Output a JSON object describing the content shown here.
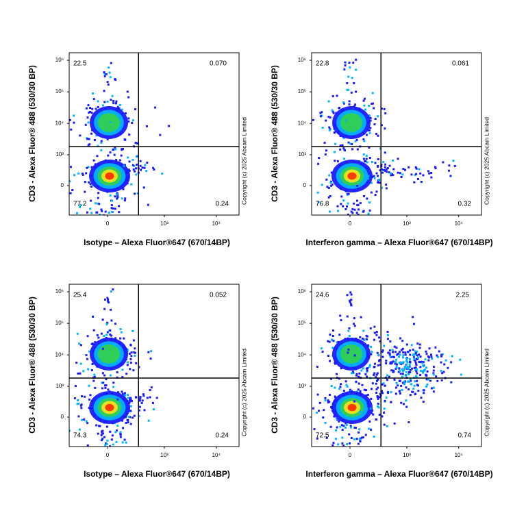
{
  "chart_data": [
    {
      "type": "scatter",
      "x_label": "Isotype – Alexa Fluor®647 (670/14BP)",
      "y_label": "CD3 - Alexa Fluor® 488 (530/30 BP)",
      "annotation": "Copyright (c) 2025 Abcam Limited",
      "xscale": "biexponential",
      "yscale": "biexponential",
      "xlim": [
        -430,
        27400
      ],
      "ylim": [
        -900,
        1740000
      ],
      "xticks": [
        0,
        {
          "value": 1000,
          "label": "10³"
        },
        {
          "value": 10000,
          "label": "10⁴"
        }
      ],
      "yticks": [
        0,
        {
          "value": 1000,
          "label": "10³"
        },
        {
          "value": 10000,
          "label": "10⁴"
        },
        {
          "value": 100000,
          "label": "10⁵"
        },
        {
          "value": 1000000,
          "label": "10⁶"
        }
      ],
      "gate": {
        "x": 300,
        "y": 1840
      },
      "quadrants": {
        "values": [
          22.5,
          0.07,
          77.2,
          0.24
        ],
        "value_labels": [
          "22.5",
          "0.070",
          "77.2",
          "0.24"
        ]
      }
    },
    {
      "type": "scatter",
      "x_label": "Interferon gamma – Alexa Fluor®647 (670/14BP)",
      "y_label": "CD3 - Alexa Fluor® 488 (530/30 BP)",
      "annotation": "Copyright (c) 2025 Abcam Limited",
      "xscale": "biexponential",
      "yscale": "biexponential",
      "xlim": [
        -430,
        27400
      ],
      "ylim": [
        -900,
        1740000
      ],
      "xticks": [
        0,
        {
          "value": 1000,
          "label": "10³"
        },
        {
          "value": 10000,
          "label": "10⁴"
        }
      ],
      "yticks": [
        0,
        {
          "value": 1000,
          "label": "10³"
        },
        {
          "value": 10000,
          "label": "10⁴"
        },
        {
          "value": 100000,
          "label": "10⁵"
        },
        {
          "value": 1000000,
          "label": "10⁶"
        }
      ],
      "gate": {
        "x": 300,
        "y": 1840
      },
      "quadrants": {
        "values": [
          22.8,
          0.061,
          76.8,
          0.32
        ],
        "value_labels": [
          "22.8",
          "0.061",
          "76.8",
          "0.32"
        ]
      }
    },
    {
      "type": "scatter",
      "x_label": "Isotype – Alexa Fluor®647 (670/14BP)",
      "y_label": "CD3 - Alexa Fluor® 488 (530/30 BP)",
      "annotation": "Copyright (c) 2025 Abcam Limited",
      "xscale": "biexponential",
      "yscale": "biexponential",
      "xlim": [
        -430,
        27400
      ],
      "ylim": [
        -900,
        1740000
      ],
      "xticks": [
        0,
        {
          "value": 1000,
          "label": "10³"
        },
        {
          "value": 10000,
          "label": "10⁴"
        }
      ],
      "yticks": [
        0,
        {
          "value": 1000,
          "label": "10³"
        },
        {
          "value": 10000,
          "label": "10⁴"
        },
        {
          "value": 100000,
          "label": "10⁵"
        },
        {
          "value": 1000000,
          "label": "10⁶"
        }
      ],
      "gate": {
        "x": 300,
        "y": 1840
      },
      "quadrants": {
        "values": [
          25.4,
          0.052,
          74.3,
          0.24
        ],
        "value_labels": [
          "25.4",
          "0.052",
          "74.3",
          "0.24"
        ]
      }
    },
    {
      "type": "scatter",
      "x_label": "Interferon gamma – Alexa Fluor®647 (670/14BP)",
      "y_label": "CD3 - Alexa Fluor® 488 (530/30 BP)",
      "annotation": "Copyright (c) 2025 Abcam Limited",
      "xscale": "biexponential",
      "yscale": "biexponential",
      "xlim": [
        -430,
        27400
      ],
      "ylim": [
        -900,
        1740000
      ],
      "xticks": [
        0,
        {
          "value": 1000,
          "label": "10³"
        },
        {
          "value": 10000,
          "label": "10⁴"
        }
      ],
      "yticks": [
        0,
        {
          "value": 1000,
          "label": "10³"
        },
        {
          "value": 10000,
          "label": "10⁴"
        },
        {
          "value": 100000,
          "label": "10⁵"
        },
        {
          "value": 1000000,
          "label": "10⁶"
        }
      ],
      "gate": {
        "x": 300,
        "y": 1840
      },
      "quadrants": {
        "values": [
          24.6,
          2.25,
          72.5,
          0.74
        ],
        "value_labels": [
          "24.6",
          "2.25",
          "72.5",
          "0.74"
        ]
      }
    }
  ]
}
